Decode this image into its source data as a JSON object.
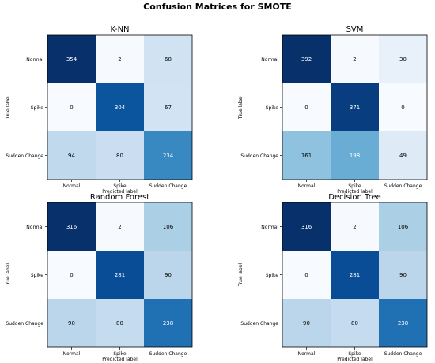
{
  "figure": {
    "title": "Confusion Matrices for SMOTE"
  },
  "colors": {
    "cmap": "Blues",
    "low": "#f7fbff",
    "high": "#08306b",
    "text_dark": "#000000",
    "text_light": "#ffffff"
  },
  "chart_data": [
    {
      "type": "heatmap",
      "title": "K-NN",
      "xlabel": "",
      "ylabel": "True label",
      "x_categories": [
        "Normal",
        "Spike",
        "Sudden Change"
      ],
      "y_categories": [
        "Normal",
        "Spike",
        "Sudden Change"
      ],
      "values": [
        [
          354,
          2,
          68
        ],
        [
          0,
          304,
          67
        ],
        [
          94,
          80,
          234
        ]
      ],
      "tick_labels_x": [
        "Normal",
        "Spike",
        "Sudden Change"
      ],
      "tick_labels_y": [
        "Normal",
        "Spike",
        "Sudden Change"
      ],
      "grid": false
    },
    {
      "type": "heatmap",
      "title": "SVM",
      "xlabel": "",
      "ylabel": "True label",
      "x_categories": [
        "Normal",
        "Spike",
        "Sudden Change"
      ],
      "y_categories": [
        "Normal",
        "Spike",
        "Sudden Change"
      ],
      "values": [
        [
          392,
          2,
          30
        ],
        [
          0,
          371,
          0
        ],
        [
          161,
          198,
          49
        ]
      ],
      "tick_labels_x": [
        "Normal",
        "Spike",
        "Sudden Change"
      ],
      "tick_labels_y": [
        "Normal",
        "Spike",
        "Sudden Change"
      ],
      "grid": false
    },
    {
      "type": "heatmap",
      "title": "Random Forest",
      "xlabel": "Predicted label",
      "ylabel": "True label",
      "x_categories": [
        "Normal",
        "Spike",
        "Sudden Change"
      ],
      "y_categories": [
        "Normal",
        "Spike",
        "Sudden Change"
      ],
      "values": [
        [
          316,
          2,
          106
        ],
        [
          0,
          281,
          90
        ],
        [
          90,
          80,
          238
        ]
      ],
      "tick_labels_x": [
        "Normal",
        "Spike",
        "Sudden Change"
      ],
      "tick_labels_y": [
        "Normal",
        "Spike",
        "Sudden Change"
      ],
      "grid": false
    },
    {
      "type": "heatmap",
      "title": "Decision Tree",
      "xlabel": "Predicted label",
      "ylabel": "True label",
      "x_categories": [
        "Normal",
        "Spike",
        "Sudden Change"
      ],
      "y_categories": [
        "Normal",
        "Spike",
        "Sudden Change"
      ],
      "values": [
        [
          316,
          2,
          106
        ],
        [
          0,
          281,
          90
        ],
        [
          90,
          80,
          238
        ]
      ],
      "tick_labels_x": [
        "Normal",
        "Spike",
        "Sudden Change"
      ],
      "tick_labels_y": [
        "Normal",
        "Spike",
        "Sudden Change"
      ],
      "grid": false
    }
  ],
  "upper_xlabel": "Predicted label"
}
